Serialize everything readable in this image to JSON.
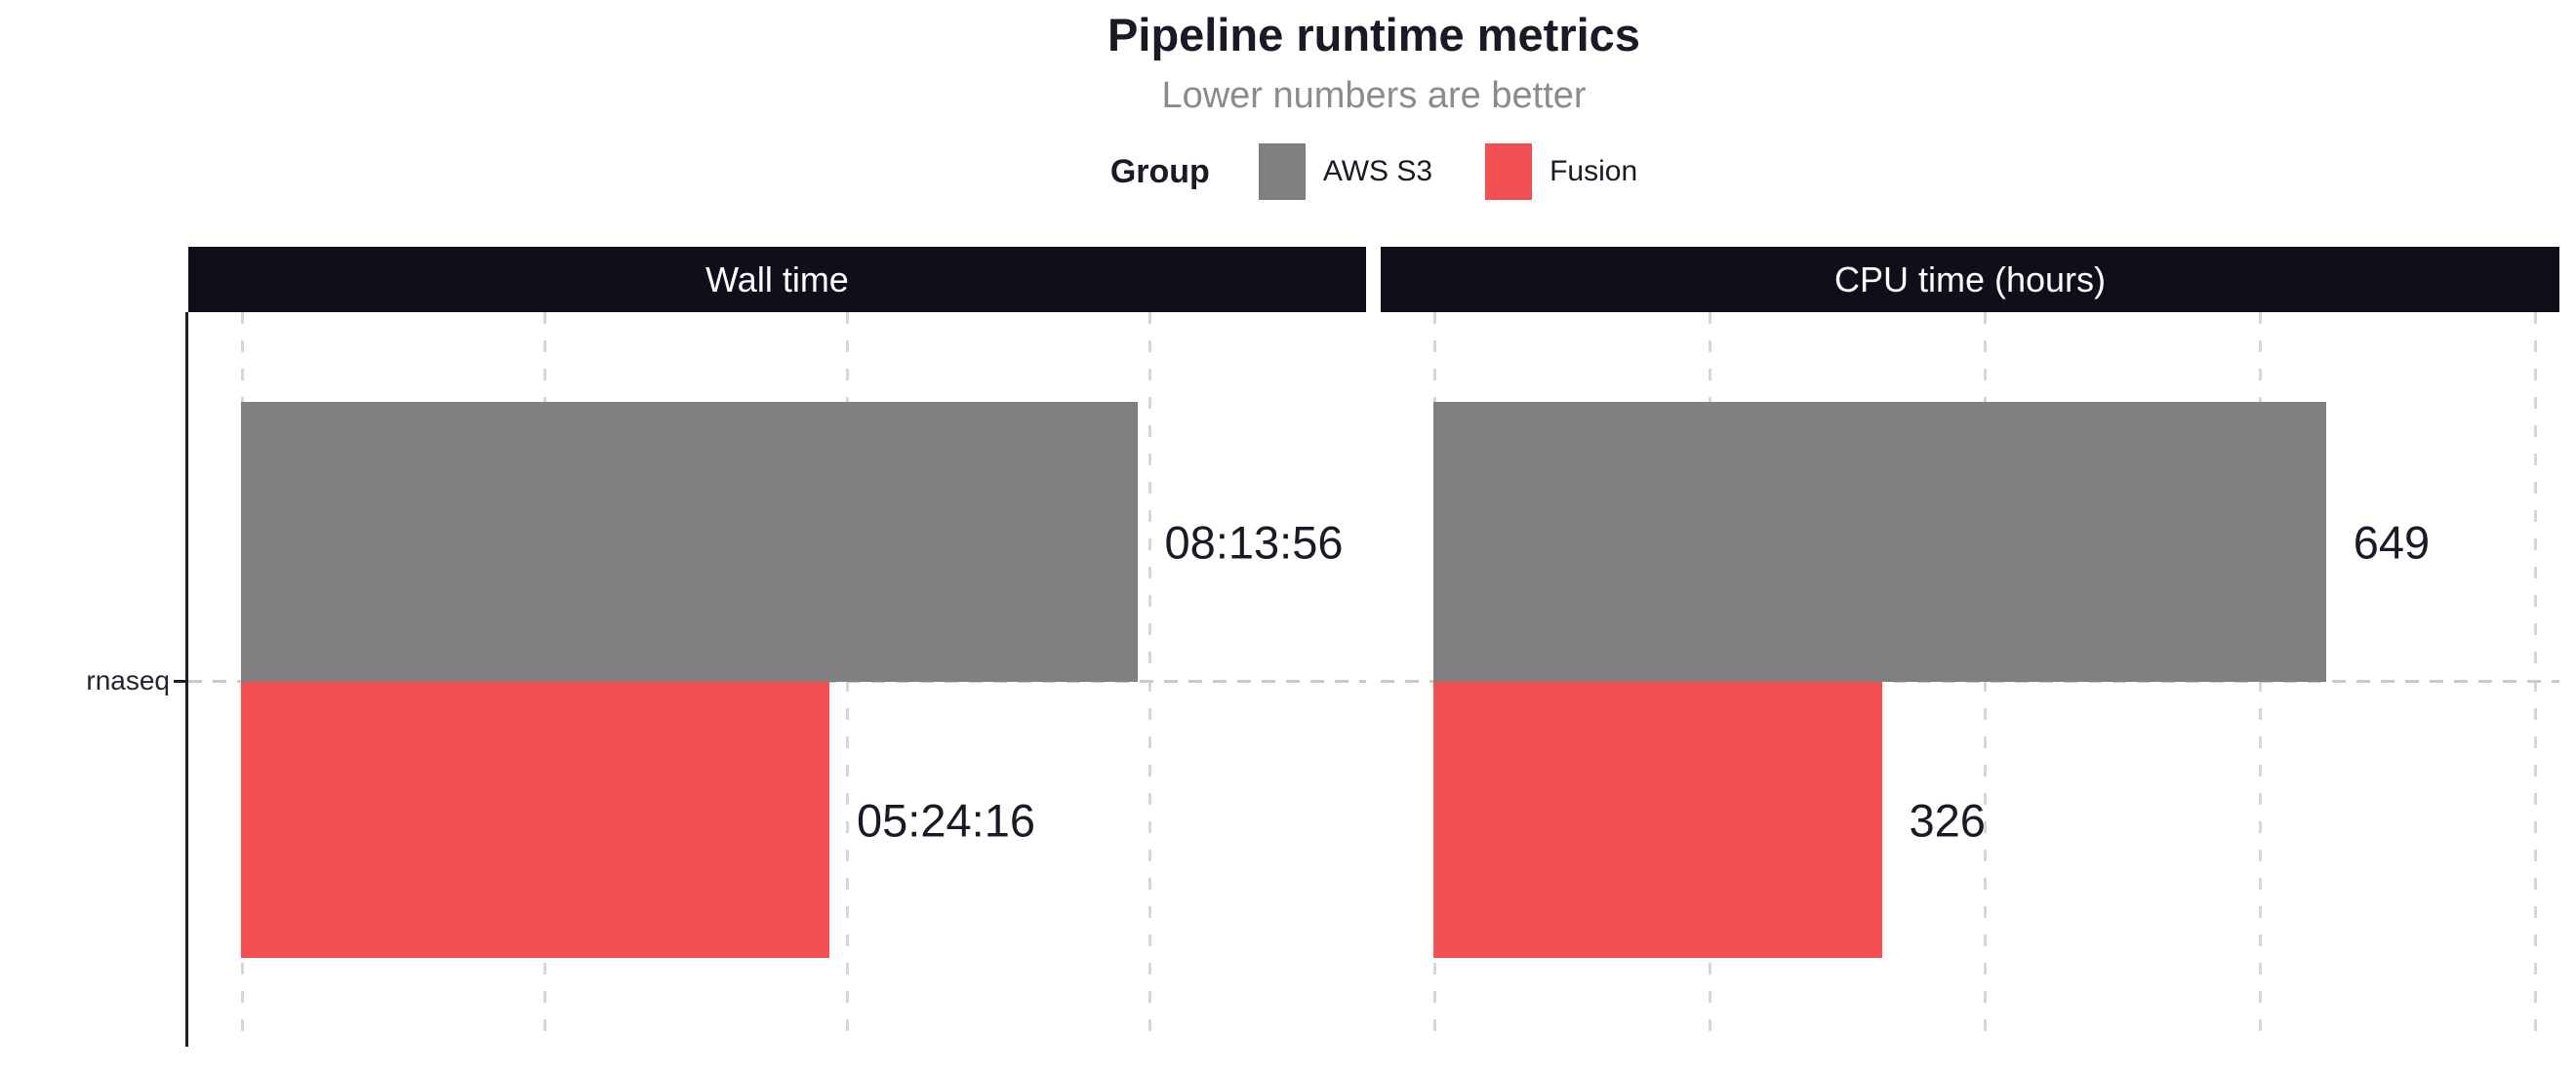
{
  "chart_data": {
    "type": "bar",
    "orientation": "horizontal",
    "title": "Pipeline runtime metrics",
    "subtitle": "Lower numbers are better",
    "legend": {
      "title": "Group",
      "position": "top",
      "entries": [
        {
          "label": "AWS S3",
          "color": "#808080"
        },
        {
          "label": "Fusion",
          "color": "#F44F51"
        }
      ]
    },
    "categories": [
      "rnaseq"
    ],
    "grid": "dashed-vertical",
    "panels": [
      {
        "title": "Wall time",
        "unit": "seconds",
        "axis_max": 37200,
        "gridline_step": 10000,
        "bars": [
          {
            "group": "AWS S3",
            "category": "rnaseq",
            "value": 29636,
            "label": "08:13:56"
          },
          {
            "group": "Fusion",
            "category": "rnaseq",
            "value": 19456,
            "label": "05:24:16"
          }
        ]
      },
      {
        "title": "CPU time (hours)",
        "unit": "hours",
        "axis_max": 818,
        "gridline_step": 200,
        "bars": [
          {
            "group": "AWS S3",
            "category": "rnaseq",
            "value": 649,
            "label": "649"
          },
          {
            "group": "Fusion",
            "category": "rnaseq",
            "value": 326,
            "label": "326"
          }
        ]
      }
    ],
    "colors": {
      "strip_background": "#110E1C",
      "strip_text": "#FFFFFF",
      "title_text": "#1C1826",
      "subtitle_text": "#8B8B8B",
      "gridline": "#D6D6D6",
      "axis_line": "#201C29"
    }
  }
}
